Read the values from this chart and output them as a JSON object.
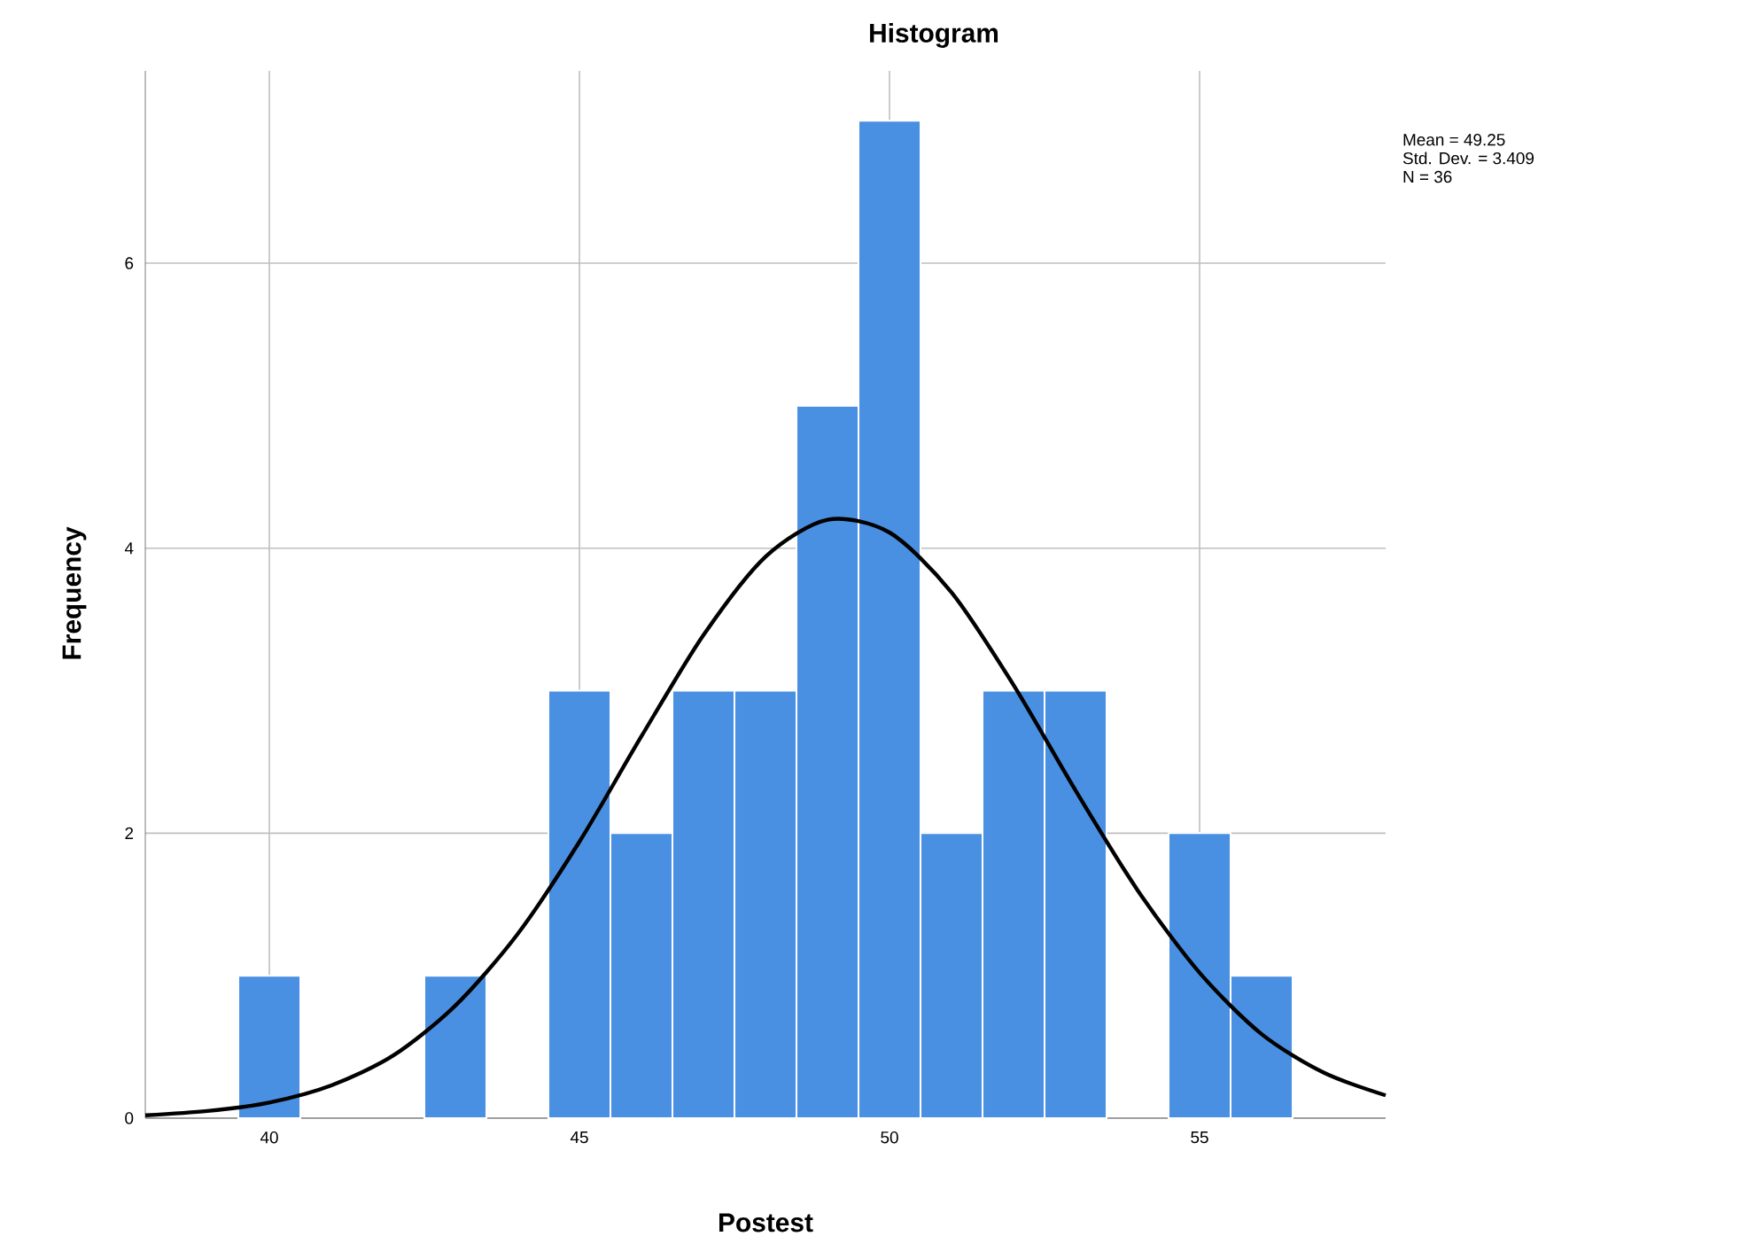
{
  "chart_data": {
    "type": "histogram",
    "title": "Histogram",
    "xlabel": "Postest",
    "ylabel": "Frequency",
    "bins": [
      39.5,
      40.5,
      41.5,
      42.5,
      43.5,
      44.5,
      45.5,
      46.5,
      47.5,
      48.5,
      49.5,
      50.5,
      51.5,
      52.5,
      53.5,
      54.5,
      55.5,
      56.5
    ],
    "values": [
      1,
      0,
      0,
      1,
      0,
      3,
      2,
      3,
      3,
      5,
      7,
      2,
      3,
      3,
      0,
      2,
      1
    ],
    "color": "#4a90e2",
    "series": [
      {
        "type": "line",
        "color": "#000000",
        "x": [
          38,
          39,
          40,
          41,
          42,
          43,
          44,
          45,
          46,
          47,
          48,
          49,
          50,
          51,
          52,
          53,
          54,
          55,
          56,
          57,
          58
        ],
        "values": [
          0.02,
          0.05,
          0.11,
          0.23,
          0.44,
          0.79,
          1.29,
          1.94,
          2.68,
          3.39,
          3.94,
          4.2,
          4.11,
          3.69,
          3.04,
          2.3,
          1.6,
          1.02,
          0.59,
          0.32,
          0.16
        ]
      }
    ],
    "xlim": [
      38,
      58
    ],
    "ylim": [
      0,
      7.35
    ],
    "xticks": [
      40,
      45,
      50,
      55
    ],
    "yticks": [
      0,
      2,
      4,
      6
    ],
    "grid": true,
    "annotations": [
      "Mean = 49.25",
      "Std. Dev. = 3.409",
      "N = 36"
    ]
  }
}
